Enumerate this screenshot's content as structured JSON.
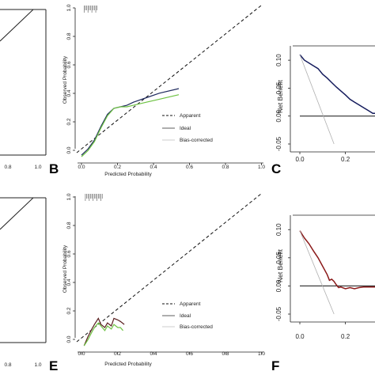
{
  "colors": {
    "apparent": "#1f2a5e",
    "bias_corrected": "#6dc242",
    "nb_top": "#141b5c",
    "nb_bottom": "#8b1a1a",
    "app_bottom": "#5a1f1f",
    "treat_all": "#b0b0b0"
  },
  "chart_data": [
    {
      "panel": "",
      "type": "line",
      "xticks": [
        "0.8",
        "1.0"
      ],
      "xlim": [
        0.6,
        1.0
      ],
      "ylim": [
        0,
        1
      ],
      "series": [
        {
          "x": [
            0.6,
            1.0
          ],
          "y": [
            0.6,
            1.0
          ]
        }
      ]
    },
    {
      "panel": "B",
      "type": "line",
      "xlabel": "Predicted Probability",
      "ylabel": "Observed Probability",
      "xticks": [
        "0.0",
        "0.2",
        "0.4",
        "0.6",
        "0.8",
        "1.0"
      ],
      "yticks": [
        "0.0",
        "0.2",
        "0.4",
        "0.6",
        "0.8",
        "1.0"
      ],
      "xlim": [
        0,
        1
      ],
      "ylim": [
        0,
        1
      ],
      "legend": [
        "Apparent",
        "Ideal",
        "Bias-corrected"
      ],
      "series": [
        {
          "key": "apparent",
          "x": [
            0.0,
            0.05,
            0.1,
            0.15,
            0.2,
            0.25,
            0.3,
            0.35,
            0.4,
            0.5,
            0.6,
            0.75
          ],
          "y": [
            0.01,
            0.05,
            0.11,
            0.2,
            0.28,
            0.32,
            0.33,
            0.34,
            0.36,
            0.39,
            0.42,
            0.45
          ]
        },
        {
          "key": "bias_corrected",
          "x": [
            0.0,
            0.05,
            0.1,
            0.15,
            0.2,
            0.25,
            0.3,
            0.35,
            0.4,
            0.5,
            0.6,
            0.75
          ],
          "y": [
            0.0,
            0.04,
            0.1,
            0.19,
            0.27,
            0.32,
            0.33,
            0.33,
            0.34,
            0.36,
            0.38,
            0.41
          ]
        }
      ],
      "rug": [
        0.02,
        0.03,
        0.04,
        0.05,
        0.06,
        0.07,
        0.08,
        0.09,
        0.1,
        0.11,
        0.12
      ]
    },
    {
      "panel": "C",
      "type": "line",
      "ylabel": "Net Benefit",
      "xticks": [
        "0.0",
        "0.2"
      ],
      "yticks": [
        "-0.05",
        "0.00",
        "0.05",
        "0.10"
      ],
      "xlim": [
        0,
        0.35
      ],
      "ylim": [
        -0.05,
        0.12
      ],
      "series": [
        {
          "key": "nb_top",
          "x": [
            0.0,
            0.02,
            0.04,
            0.06,
            0.08,
            0.1,
            0.12,
            0.14,
            0.16,
            0.18,
            0.2,
            0.22,
            0.24,
            0.26,
            0.28,
            0.3,
            0.32,
            0.34
          ],
          "y": [
            0.11,
            0.1,
            0.095,
            0.09,
            0.085,
            0.075,
            0.068,
            0.06,
            0.052,
            0.045,
            0.038,
            0.03,
            0.025,
            0.02,
            0.015,
            0.01,
            0.005,
            0.005
          ]
        },
        {
          "key": "treat_all",
          "x": [
            0.0,
            0.15
          ],
          "y": [
            0.11,
            -0.05
          ]
        }
      ]
    },
    {
      "panel": "",
      "type": "line",
      "xticks": [
        "0.8",
        "1.0"
      ],
      "xlim": [
        0.6,
        1.0
      ],
      "ylim": [
        0,
        1
      ],
      "series": [
        {
          "x": [
            0.6,
            1.0
          ],
          "y": [
            0.6,
            1.0
          ]
        }
      ]
    },
    {
      "panel": "E",
      "type": "line",
      "xlabel": "Predicted Probability",
      "ylabel": "Observed Probability",
      "xticks": [
        "0.0",
        "0.2",
        "0.4",
        "0.6",
        "0.8",
        "1.0"
      ],
      "yticks": [
        "0.0",
        "0.2",
        "0.4",
        "0.6",
        "0.8",
        "1.0"
      ],
      "xlim": [
        0,
        1
      ],
      "ylim": [
        0,
        1
      ],
      "legend": [
        "Apparent",
        "Ideal",
        "Bias-corrected"
      ],
      "series": [
        {
          "key": "app_bottom",
          "x": [
            0.02,
            0.05,
            0.08,
            0.1,
            0.13,
            0.15,
            0.18,
            0.2,
            0.23,
            0.25,
            0.28,
            0.3,
            0.33
          ],
          "y": [
            0.0,
            0.06,
            0.11,
            0.14,
            0.18,
            0.14,
            0.12,
            0.15,
            0.13,
            0.18,
            0.17,
            0.16,
            0.14
          ]
        },
        {
          "key": "bias_corrected",
          "x": [
            0.02,
            0.05,
            0.08,
            0.1,
            0.13,
            0.15,
            0.18,
            0.2,
            0.23,
            0.25,
            0.28,
            0.3,
            0.32
          ],
          "y": [
            0.0,
            0.04,
            0.09,
            0.12,
            0.15,
            0.13,
            0.1,
            0.13,
            0.11,
            0.14,
            0.12,
            0.12,
            0.1
          ]
        }
      ],
      "rug": [
        0.03,
        0.04,
        0.05,
        0.06,
        0.07,
        0.08,
        0.09,
        0.1,
        0.11,
        0.12,
        0.13,
        0.14,
        0.15,
        0.16
      ]
    },
    {
      "panel": "F",
      "type": "line",
      "ylabel": "Net Benefit",
      "xticks": [
        "0.0",
        "0.2"
      ],
      "yticks": [
        "-0.05",
        "0.00",
        "0.05",
        "0.10"
      ],
      "xlim": [
        0,
        0.35
      ],
      "ylim": [
        -0.05,
        0.12
      ],
      "series": [
        {
          "key": "nb_bottom",
          "x": [
            0.0,
            0.02,
            0.04,
            0.06,
            0.08,
            0.1,
            0.12,
            0.13,
            0.14,
            0.15,
            0.16,
            0.17,
            0.18,
            0.2,
            0.22,
            0.24,
            0.26,
            0.28,
            0.3,
            0.35
          ],
          "y": [
            0.098,
            0.085,
            0.075,
            0.062,
            0.05,
            0.035,
            0.02,
            0.01,
            0.012,
            0.008,
            0.002,
            -0.003,
            -0.002,
            -0.005,
            -0.003,
            -0.005,
            -0.003,
            -0.002,
            -0.002,
            -0.002
          ]
        },
        {
          "key": "treat_all",
          "x": [
            0.0,
            0.15
          ],
          "y": [
            0.098,
            -0.05
          ]
        }
      ]
    }
  ]
}
